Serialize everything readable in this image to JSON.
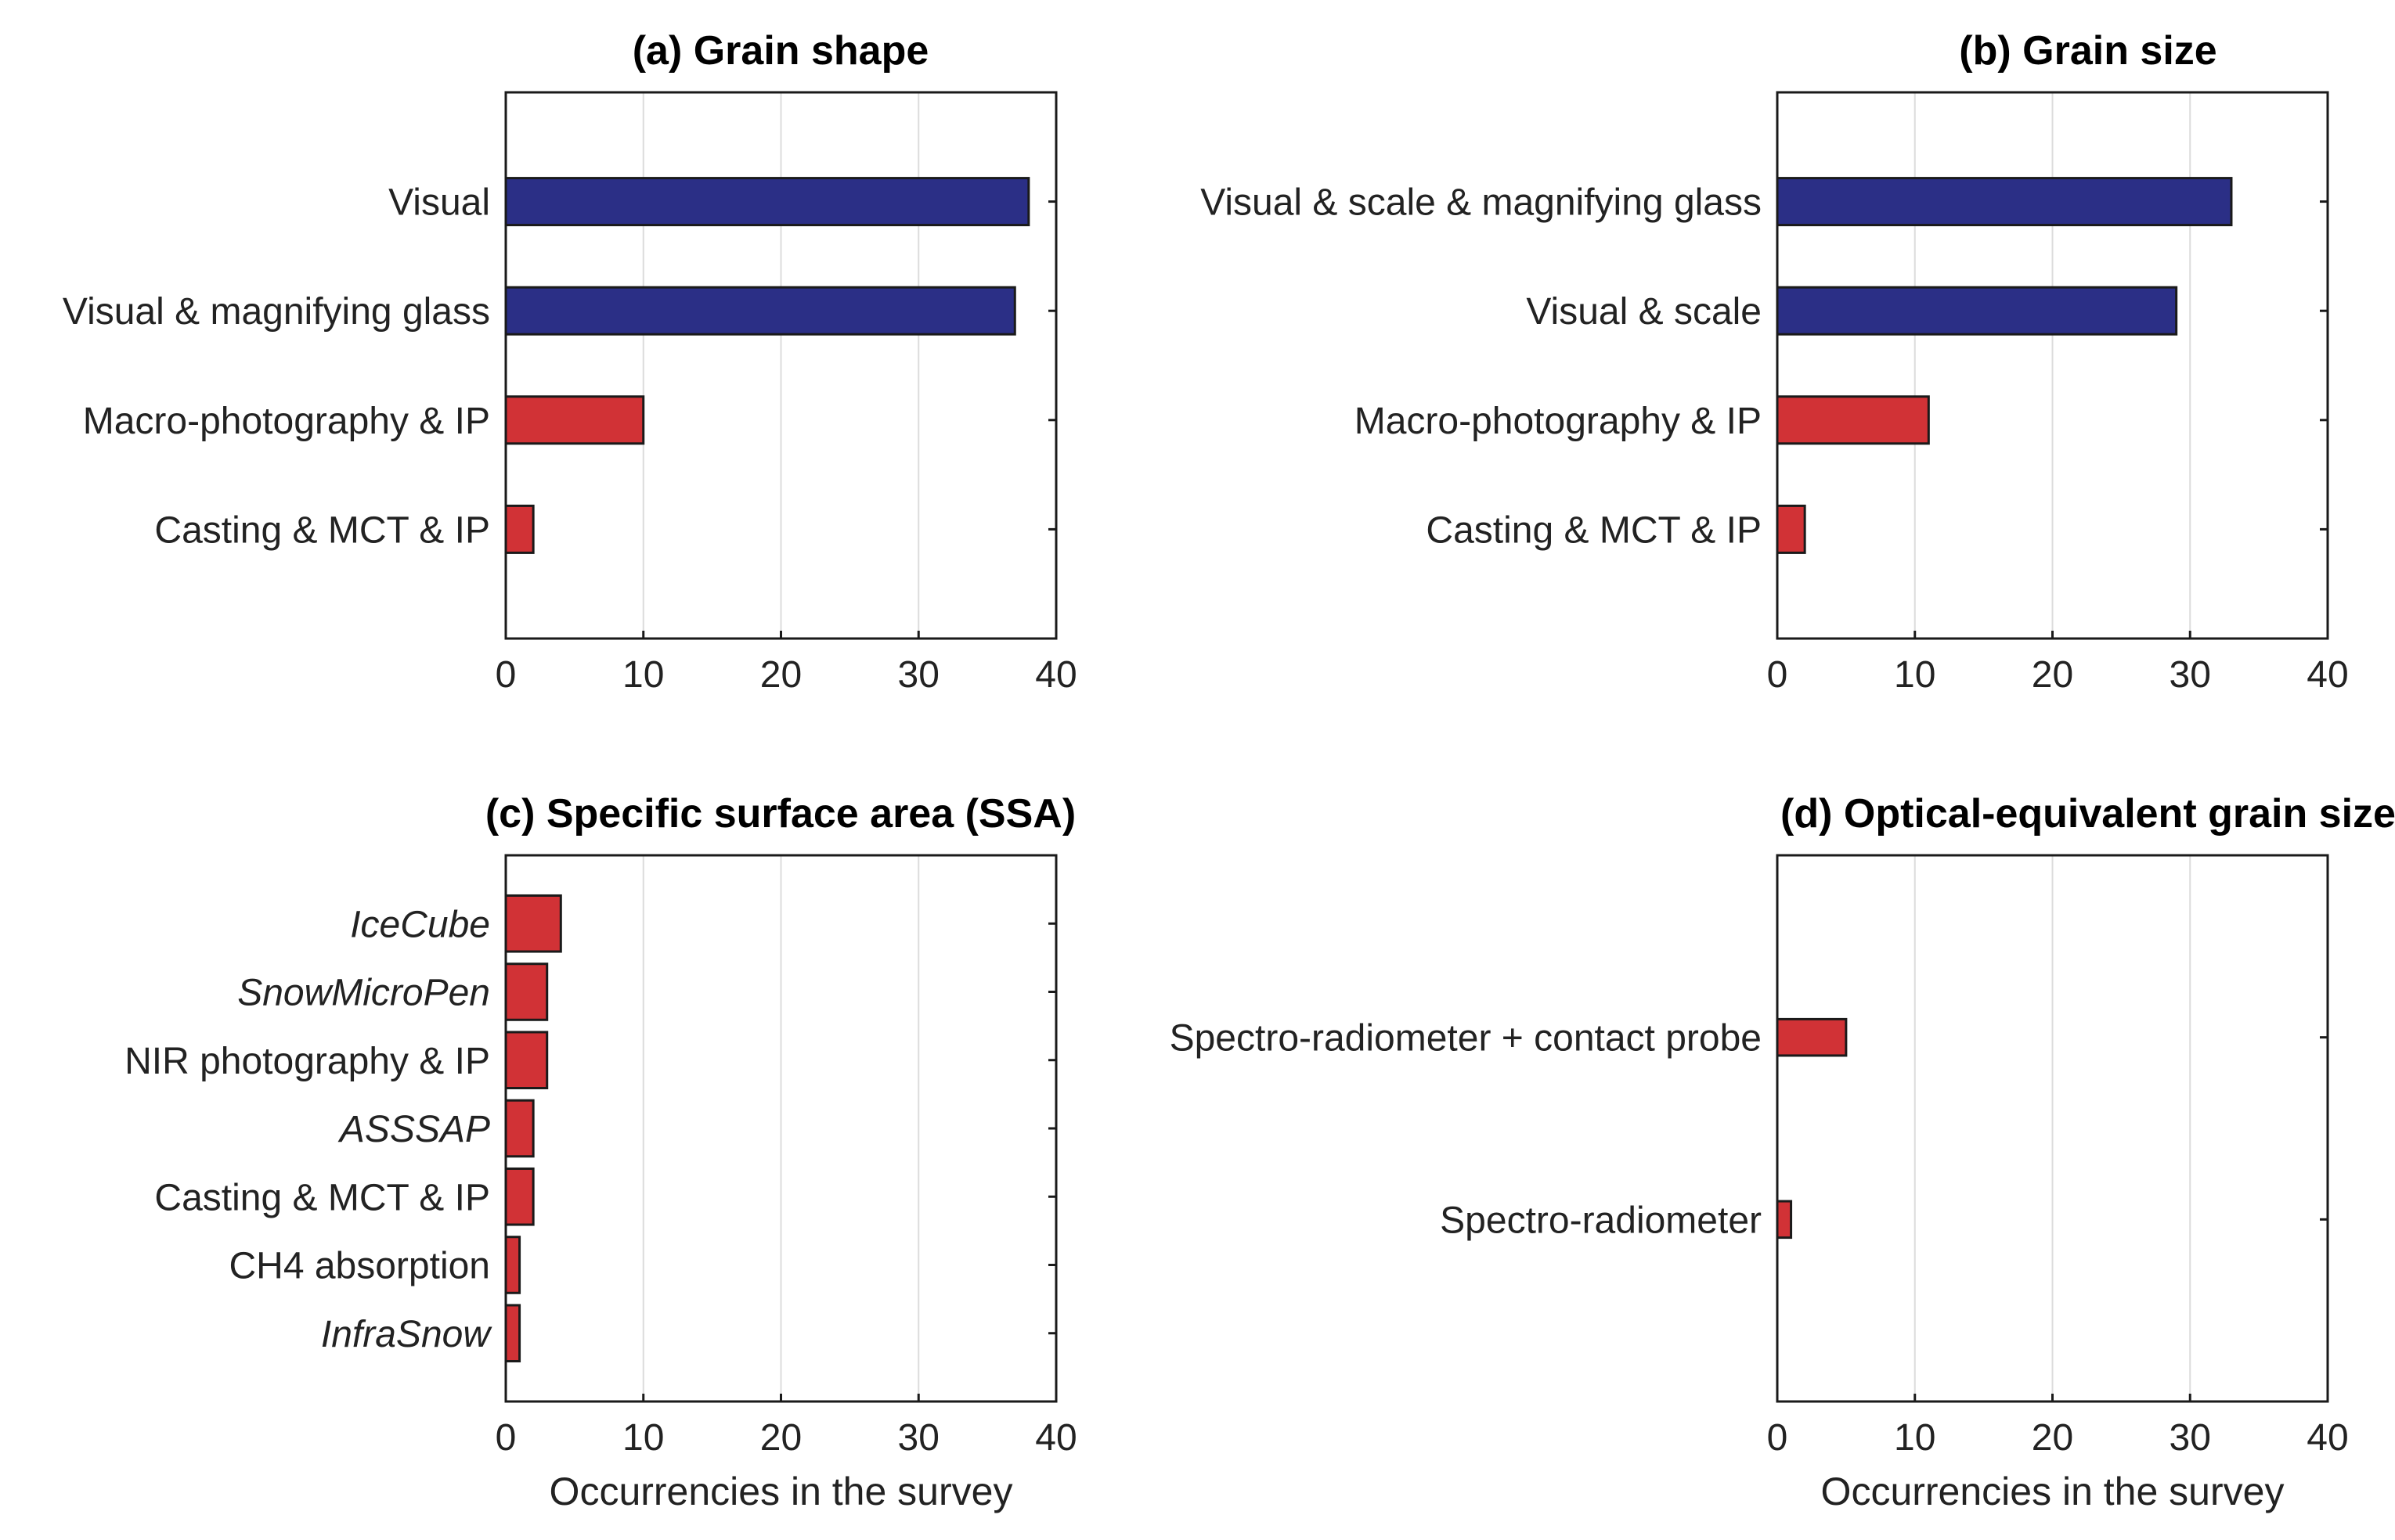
{
  "colors": {
    "blue": "#2b2f86",
    "red": "#d13236"
  },
  "chart_data": [
    {
      "type": "bar",
      "orientation": "horizontal",
      "title": "(a) Grain shape",
      "xlabel": "",
      "xlim": [
        0,
        40
      ],
      "xticks": [
        0,
        10,
        20,
        30,
        40
      ],
      "categories": [
        "Visual",
        "Visual & magnifying glass",
        "Macro-photography & IP",
        "Casting & MCT & IP"
      ],
      "values": [
        38,
        37,
        10,
        2
      ],
      "bar_colors": [
        "blue",
        "blue",
        "red",
        "red"
      ],
      "italic": [
        false,
        false,
        false,
        false
      ]
    },
    {
      "type": "bar",
      "orientation": "horizontal",
      "title": "(b) Grain size",
      "xlabel": "",
      "xlim": [
        0,
        40
      ],
      "xticks": [
        0,
        10,
        20,
        30,
        40
      ],
      "categories": [
        "Visual & scale & magnifying glass",
        "Visual & scale",
        "Macro-photography & IP",
        "Casting & MCT & IP"
      ],
      "values": [
        33,
        29,
        11,
        2
      ],
      "bar_colors": [
        "blue",
        "blue",
        "red",
        "red"
      ],
      "italic": [
        false,
        false,
        false,
        false
      ]
    },
    {
      "type": "bar",
      "orientation": "horizontal",
      "title": "(c) Specific surface area (SSA)",
      "xlabel": "Occurrencies in the survey",
      "xlim": [
        0,
        40
      ],
      "xticks": [
        0,
        10,
        20,
        30,
        40
      ],
      "categories": [
        "IceCube",
        "SnowMicroPen",
        "NIR photography & IP",
        "ASSSAP",
        "Casting & MCT & IP",
        "CH4 absorption",
        "InfraSnow"
      ],
      "values": [
        4,
        3,
        3,
        2,
        2,
        1,
        1
      ],
      "bar_colors": [
        "red",
        "red",
        "red",
        "red",
        "red",
        "red",
        "red"
      ],
      "italic": [
        true,
        true,
        false,
        true,
        false,
        false,
        true
      ]
    },
    {
      "type": "bar",
      "orientation": "horizontal",
      "title": "(d) Optical-equivalent grain size",
      "xlabel": "Occurrencies in the survey",
      "xlim": [
        0,
        40
      ],
      "xticks": [
        0,
        10,
        20,
        30,
        40
      ],
      "categories": [
        "Spectro-radiometer + contact probe",
        "Spectro-radiometer"
      ],
      "values": [
        5,
        1
      ],
      "bar_colors": [
        "red",
        "red"
      ],
      "italic": [
        false,
        false
      ]
    }
  ]
}
